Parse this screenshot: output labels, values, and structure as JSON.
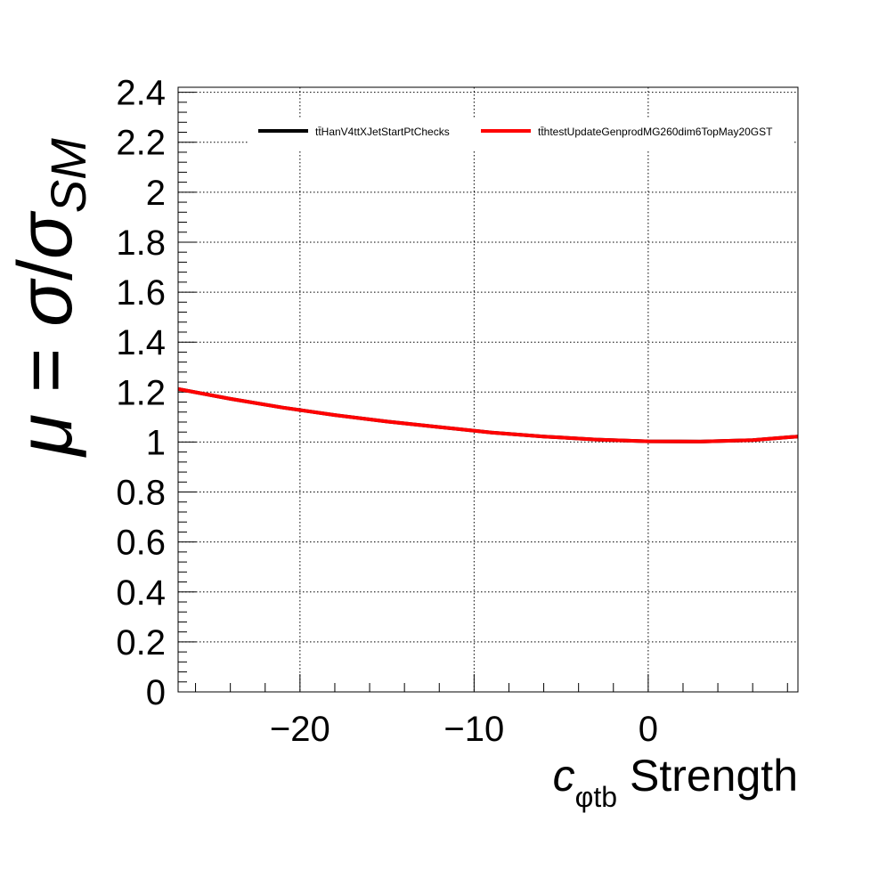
{
  "chart_data": {
    "type": "line",
    "title": "",
    "xlabel": {
      "symbol": "c",
      "subscript": "φtb",
      "suffix": " Strength"
    },
    "ylabel": {
      "mu": "μ",
      "equals": " = ",
      "sigma1": "σ",
      "slash": "/",
      "sigma2": "σ",
      "subscript": "SM"
    },
    "xlim": [
      -27,
      8.6
    ],
    "ylim": [
      0,
      2.42
    ],
    "x_ticks": [
      -20,
      -10,
      0
    ],
    "x_tick_labels": [
      "−20",
      "−10",
      "0"
    ],
    "y_ticks": [
      0,
      0.2,
      0.4,
      0.6,
      0.8,
      1,
      1.2,
      1.4,
      1.6,
      1.8,
      2,
      2.2,
      2.4
    ],
    "y_tick_labels": [
      "0",
      "0.2",
      "0.4",
      "0.6",
      "0.8",
      "1",
      "1.2",
      "1.4",
      "1.6",
      "1.8",
      "2",
      "2.2",
      "2.4"
    ],
    "grid": true,
    "legend_placement": "top-right",
    "series": [
      {
        "name": "tt̄HanV4ttXJetStartPtChecks",
        "color": "#000000",
        "x": [
          -27,
          -24,
          -21,
          -18,
          -15,
          -12,
          -9,
          -6,
          -3,
          0,
          3,
          6,
          8.6
        ],
        "values": [
          1.212,
          1.173,
          1.138,
          1.108,
          1.082,
          1.06,
          1.038,
          1.022,
          1.01,
          1.003,
          1.002,
          1.008,
          1.022
        ]
      },
      {
        "name": "tt̄htestUpdateGenprodMG260dim6TopMay20GST",
        "color": "#ff0000",
        "x": [
          -27,
          -24,
          -21,
          -18,
          -15,
          -12,
          -9,
          -6,
          -3,
          0,
          3,
          6,
          8.6
        ],
        "values": [
          1.212,
          1.173,
          1.138,
          1.108,
          1.082,
          1.06,
          1.038,
          1.022,
          1.01,
          1.003,
          1.002,
          1.008,
          1.022
        ]
      }
    ]
  }
}
